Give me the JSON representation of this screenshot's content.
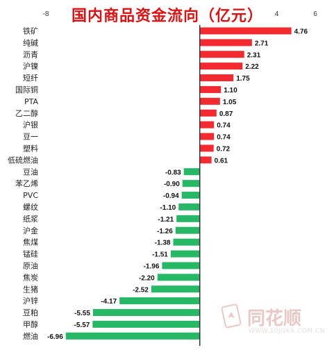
{
  "chart_data": {
    "type": "bar",
    "orientation": "horizontal",
    "title": "国内商品资金流向（亿元）",
    "xlabel": "",
    "ylabel": "",
    "xlim": [
      -8,
      6
    ],
    "x_ticks": [
      -8,
      4,
      6
    ],
    "grid": false,
    "colors": {
      "positive": "#f32a2f",
      "negative": "#27b865",
      "axis": "#333333"
    },
    "categories": [
      "铁矿",
      "纯碱",
      "沥青",
      "沪镍",
      "短纤",
      "国际铜",
      "PTA",
      "乙二醇",
      "沪银",
      "豆一",
      "塑料",
      "低硫燃油",
      "豆油",
      "苯乙烯",
      "PVC",
      "螺纹",
      "纸浆",
      "沪金",
      "焦煤",
      "锰硅",
      "原油",
      "焦炭",
      "生猪",
      "沪锌",
      "豆粕",
      "甲醇",
      "燃油"
    ],
    "values": [
      4.76,
      2.71,
      2.31,
      2.22,
      1.75,
      1.1,
      1.05,
      0.87,
      0.74,
      0.74,
      0.72,
      0.61,
      -0.83,
      -0.9,
      -0.94,
      -1.1,
      -1.21,
      -1.26,
      -1.38,
      -1.51,
      -1.96,
      -2.2,
      -2.52,
      -4.17,
      -5.55,
      -5.57,
      -6.96
    ],
    "value_labels": [
      "4.76",
      "2.71",
      "2.31",
      "2.22",
      "1.75",
      "1.10",
      "1.05",
      "0.87",
      "0.74",
      "0.74",
      "0.72",
      "0.61",
      "-0.83",
      "-0.90",
      "-0.94",
      "-1.10",
      "-1.21",
      "-1.26",
      "-1.38",
      "-1.51",
      "-1.96",
      "-2.20",
      "-2.52",
      "-4.17",
      "-5.55",
      "-5.57",
      "-6.96"
    ]
  },
  "watermark": {
    "brand": "同花顺",
    "url": "WWW.10JQKA.COM.CN",
    "icon": "playing-card-icon"
  }
}
